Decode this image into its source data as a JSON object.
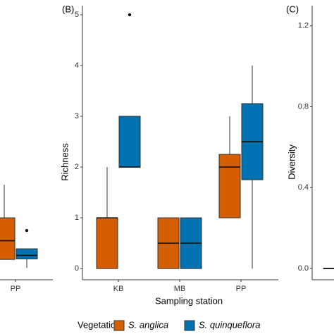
{
  "chart_data": [
    {
      "type": "box",
      "categories": [
        "PP"
      ],
      "ylim": [
        -0.22,
        5.18
      ],
      "series": [
        {
          "color": "#D55E00",
          "values": [
            {
              "min": 0.18,
              "q1": 0.18,
              "median": 0.55,
              "q3": 1.0,
              "max": 1.65,
              "outliers": []
            }
          ]
        },
        {
          "color": "#0072B2",
          "values": [
            {
              "min": 0.01,
              "q1": 0.19,
              "median": 0.26,
              "q3": 0.39,
              "max": 0.39,
              "outliers": [
                0.75
              ]
            }
          ]
        }
      ]
    },
    {
      "type": "box",
      "panel": "(B)",
      "y_label": "Richness",
      "x_label": "Sampling station",
      "legend_title": "Vegetation",
      "categories": [
        "KB",
        "MB",
        "PP"
      ],
      "ylim": [
        -0.22,
        5.18
      ],
      "yticks": [
        0,
        1,
        2,
        3,
        4,
        5
      ],
      "series": [
        {
          "name": "S. anglica",
          "color": "#D55E00",
          "values": [
            {
              "min": 0,
              "q1": 0,
              "median": 1,
              "q3": 1,
              "max": 2,
              "outliers": []
            },
            {
              "min": 0,
              "q1": 0,
              "median": 0.5,
              "q3": 1,
              "max": 1,
              "outliers": []
            },
            {
              "min": 1,
              "q1": 1,
              "median": 2,
              "q3": 2.25,
              "max": 3,
              "outliers": []
            }
          ]
        },
        {
          "name": "S. quinqueflora",
          "color": "#0072B2",
          "values": [
            {
              "min": 2,
              "q1": 2,
              "median": 2,
              "q3": 3,
              "max": 3,
              "outliers": [
                5
              ]
            },
            {
              "min": 0,
              "q1": 0,
              "median": 0.5,
              "q3": 1,
              "max": 1,
              "outliers": []
            },
            {
              "min": 0,
              "q1": 1.75,
              "median": 2.5,
              "q3": 3.25,
              "max": 4,
              "outliers": []
            }
          ]
        }
      ]
    },
    {
      "type": "box",
      "panel": "(C)",
      "y_label": "Diversity",
      "ylim": [
        -0.056,
        1.3
      ],
      "yticks": [
        {
          "value": 0,
          "label": "0.0"
        },
        0.4,
        0.8,
        1.2
      ],
      "series": [
        {
          "color": "#D55E00",
          "values": [
            {
              "min": 0,
              "q1": 0,
              "median": 0,
              "q3": 0,
              "max": 0,
              "outliers": []
            }
          ]
        }
      ]
    }
  ]
}
